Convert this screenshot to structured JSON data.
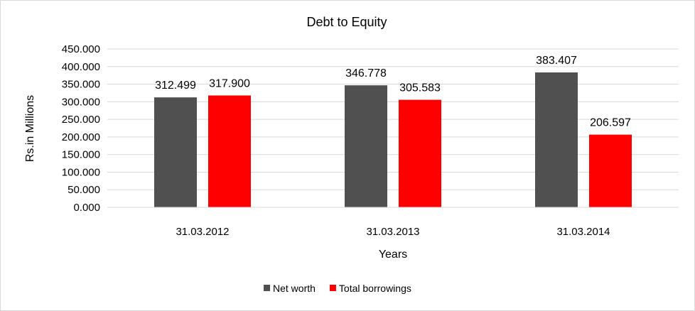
{
  "chart_data": {
    "type": "bar",
    "title": "Debt to Equity",
    "xlabel": "Years",
    "ylabel": "Rs.in Millions",
    "categories": [
      "31.03.2012",
      "31.03.2013",
      "31.03.2014"
    ],
    "series": [
      {
        "name": "Net worth",
        "color": "#505050",
        "values": [
          312.499,
          346.778,
          383.407
        ],
        "labels": [
          "312.499",
          "346.778",
          "383.407"
        ]
      },
      {
        "name": "Total borrowings",
        "color": "#ff0000",
        "values": [
          317.9,
          305.583,
          206.597
        ],
        "labels": [
          "317.900",
          "305.583",
          "206.597"
        ]
      }
    ],
    "ylim": [
      0,
      450
    ],
    "yticks": [
      {
        "value": 0,
        "label": "0.000"
      },
      {
        "value": 50,
        "label": "50.000"
      },
      {
        "value": 100,
        "label": "100.000"
      },
      {
        "value": 150,
        "label": "150.000"
      },
      {
        "value": 200,
        "label": "200.000"
      },
      {
        "value": 250,
        "label": "250.000"
      },
      {
        "value": 300,
        "label": "300.000"
      },
      {
        "value": 350,
        "label": "350.000"
      },
      {
        "value": 400,
        "label": "400.000"
      },
      {
        "value": 450,
        "label": "450.000"
      }
    ],
    "grid": true,
    "gridline_color": "#d9d9d9",
    "legend_position": "bottom"
  }
}
